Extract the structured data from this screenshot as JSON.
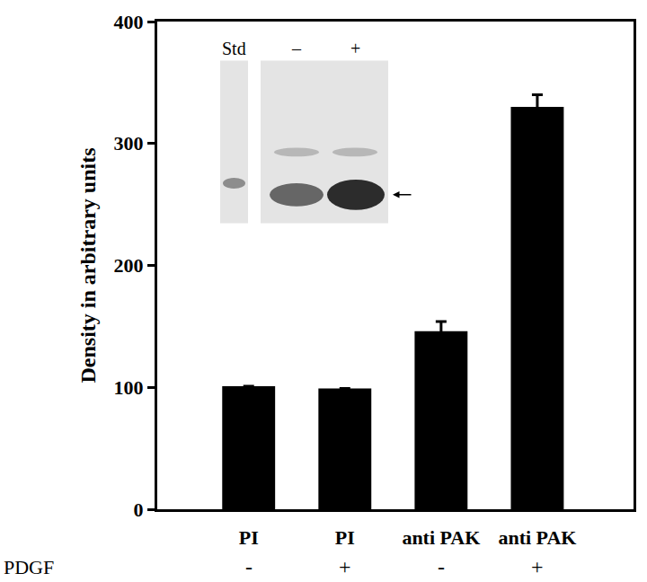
{
  "chart_data": {
    "type": "bar",
    "y_label": "Density in arbitrary units",
    "categories": [
      "PI",
      "PI",
      "anti PAK",
      "anti PAK"
    ],
    "values": [
      101,
      99,
      146,
      330
    ],
    "errors": [
      null,
      null,
      8,
      10
    ],
    "color": "#000000",
    "ylim": [
      0,
      400
    ],
    "yticks": [
      0,
      100,
      200,
      300,
      400
    ],
    "grid": false,
    "annotations": {
      "row_title": "PDGF",
      "row": [
        "-",
        "+",
        "-",
        "+"
      ],
      "inset": [
        "Std",
        "–",
        "+"
      ]
    }
  }
}
